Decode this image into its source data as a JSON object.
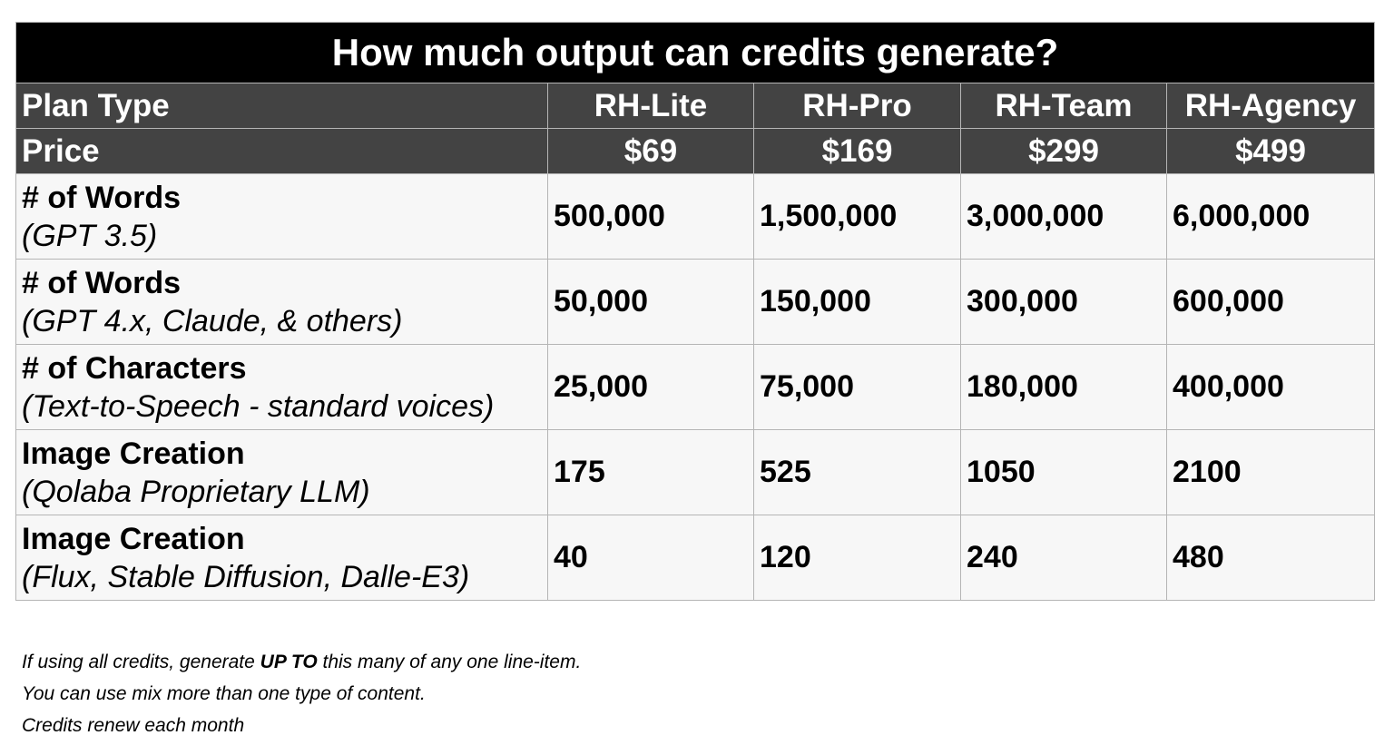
{
  "title": "How much output can credits generate?",
  "header": {
    "plan_label": "Plan Type",
    "price_label": "Price",
    "plans": [
      {
        "name": "RH-Lite",
        "price": "$69"
      },
      {
        "name": "RH-Pro",
        "price": "$169"
      },
      {
        "name": "RH-Team",
        "price": "$299"
      },
      {
        "name": "RH-Agency",
        "price": "$499"
      }
    ]
  },
  "rows": [
    {
      "label": "# of Words",
      "sub": "(GPT 3.5)",
      "values": [
        "500,000",
        "1,500,000",
        "3,000,000",
        "6,000,000"
      ]
    },
    {
      "label": "# of Words",
      "sub": "(GPT 4.x, Claude, & others)",
      "values": [
        "50,000",
        "150,000",
        "300,000",
        "600,000"
      ]
    },
    {
      "label": "# of Characters",
      "sub": "(Text-to-Speech - standard voices)",
      "values": [
        "25,000",
        "75,000",
        "180,000",
        "400,000"
      ]
    },
    {
      "label": "Image Creation",
      "sub": "(Qolaba Proprietary LLM)",
      "values": [
        "175",
        "525",
        "1050",
        "2100"
      ]
    },
    {
      "label": "Image Creation",
      "sub": "(Flux, Stable Diffusion, Dalle-E3)",
      "values": [
        "40",
        "120",
        "240",
        "480"
      ]
    }
  ],
  "notes": {
    "line1_before": "If using all credits, generate ",
    "line1_bold": "UP TO",
    "line1_after": " this many of any one line-item.",
    "line2": "You can use mix more than one type of content.",
    "line3": "Credits renew each month"
  },
  "colors": {
    "title_bg": "#000000",
    "header_bg": "#434343",
    "cell_bg": "#f7f7f7",
    "border": "#b5b5b5"
  }
}
